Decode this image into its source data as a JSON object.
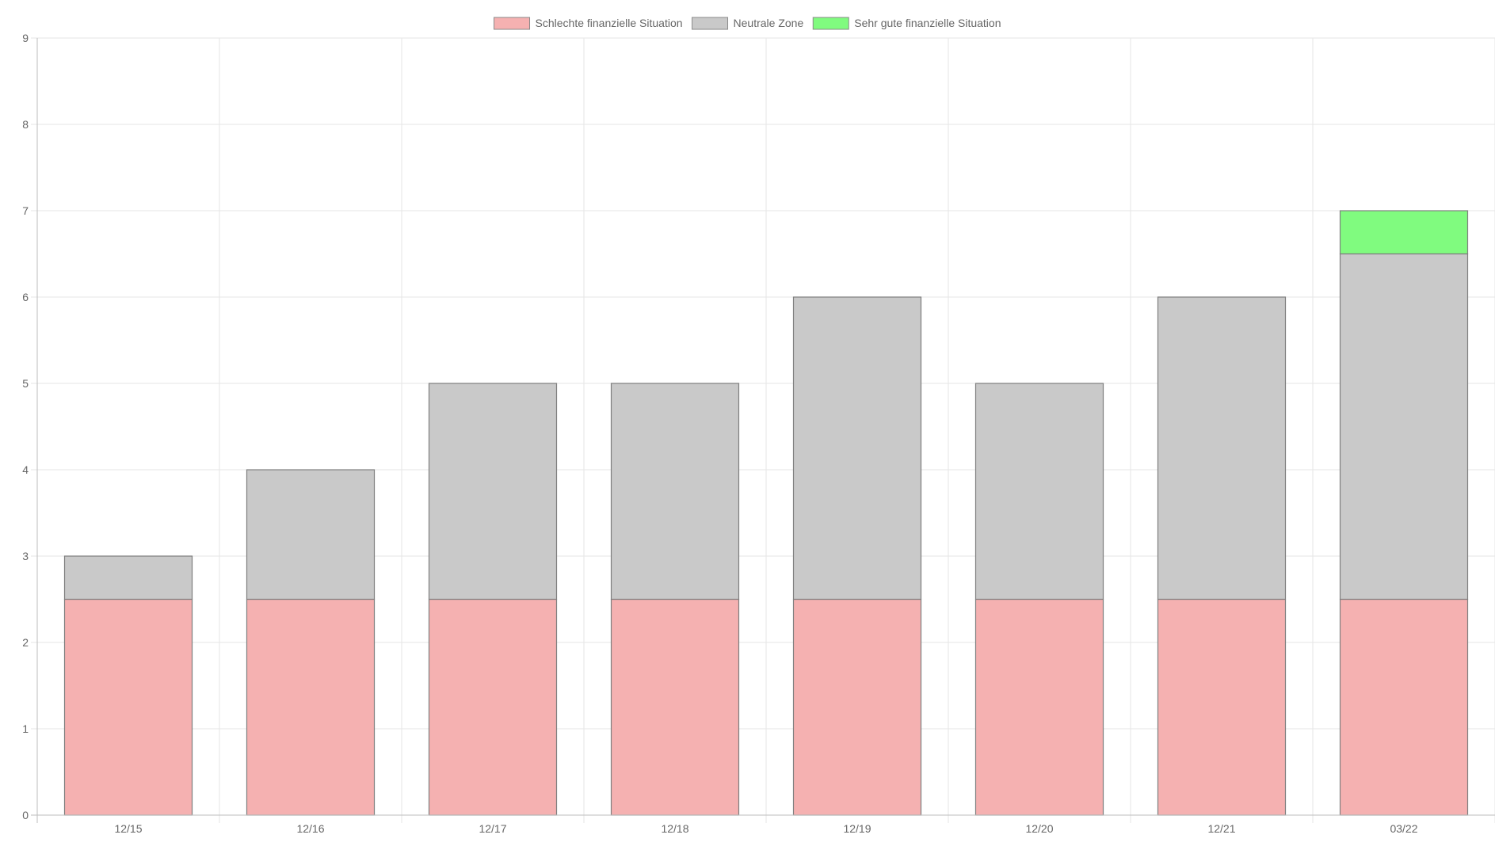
{
  "chart_data": {
    "type": "bar",
    "stacked": true,
    "categories": [
      "12/15",
      "12/16",
      "12/17",
      "12/18",
      "12/19",
      "12/20",
      "12/21",
      "03/22"
    ],
    "series": [
      {
        "name": "Schlechte finanzielle Situation",
        "color": "#f5b1b1",
        "values": [
          2.5,
          2.5,
          2.5,
          2.5,
          2.5,
          2.5,
          2.5,
          2.5
        ]
      },
      {
        "name": "Neutrale Zone",
        "color": "#c9c9c9",
        "values": [
          0.5,
          1.5,
          2.5,
          2.5,
          3.5,
          2.5,
          3.5,
          4
        ]
      },
      {
        "name": "Sehr gute finanzielle Situation",
        "color": "#80fb7f",
        "values": [
          0,
          0,
          0,
          0,
          0,
          0,
          0,
          0.5
        ]
      }
    ],
    "ylim": [
      0,
      9
    ],
    "yticks": [
      "0",
      "1",
      "2",
      "3",
      "4",
      "5",
      "6",
      "7",
      "8",
      "9"
    ],
    "grid": true,
    "legend_position": "top-center",
    "title": "",
    "xlabel": "",
    "ylabel": ""
  }
}
